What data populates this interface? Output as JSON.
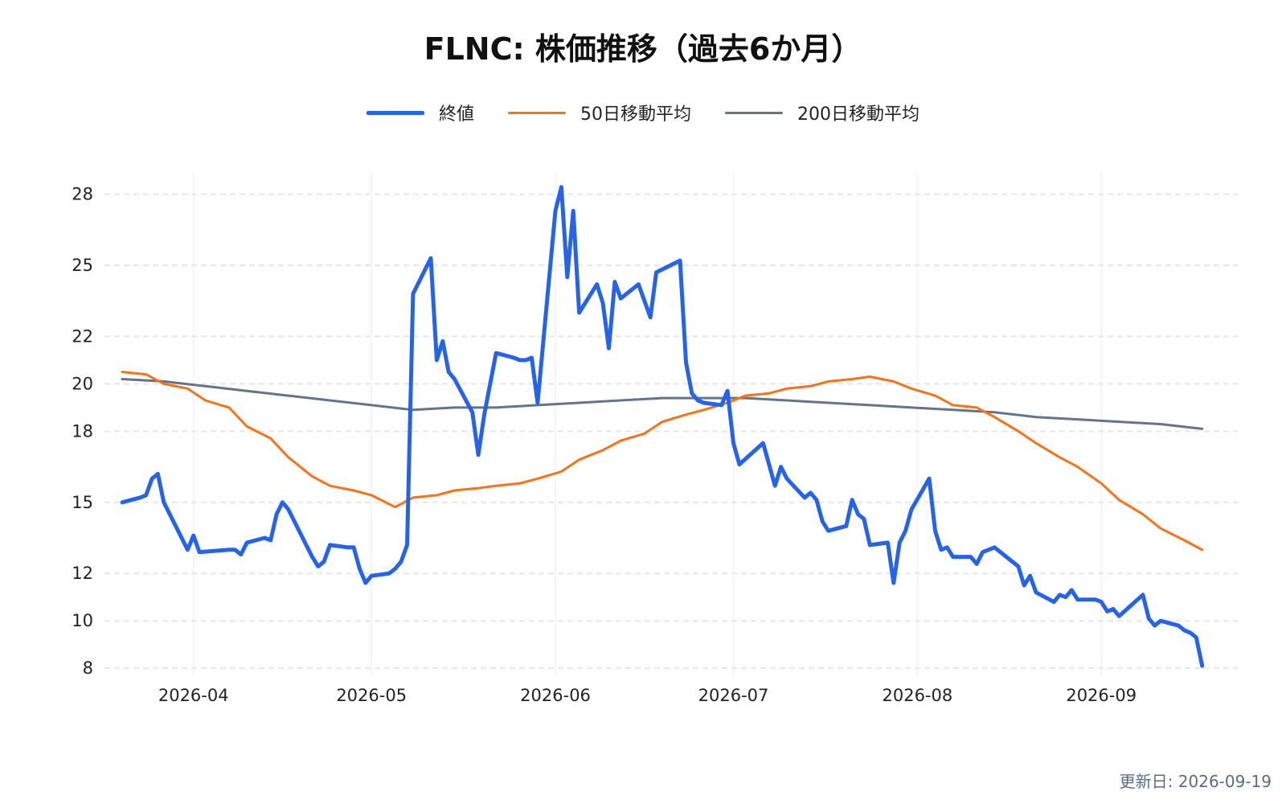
{
  "title": "FLNC: 株価推移（過去6か月）",
  "updated": "更新日: 2026-09-19",
  "colors": {
    "close": "#2563eb",
    "ma50": "#f97316",
    "ma200": "#64748b",
    "grid": "#e5e7eb",
    "text": "#222222"
  },
  "chart_data": {
    "type": "line",
    "title": "FLNC: 株価推移（過去6か月）",
    "xlabel": "",
    "ylabel": "",
    "ylim": [
      7.7,
      28.9
    ],
    "yticks": [
      8,
      10,
      12,
      15,
      18,
      20,
      22,
      25,
      28
    ],
    "xticks": [
      "2026-04",
      "2026-05",
      "2026-06",
      "2026-07",
      "2026-08",
      "2026-09"
    ],
    "xlim": [
      "2026-03-17",
      "2026-09-24"
    ],
    "grid": true,
    "legend_position": "top-center",
    "series": [
      {
        "name": "終値",
        "color": "#2563eb",
        "x": [
          "2026-03-20",
          "2026-03-23",
          "2026-03-24",
          "2026-03-25",
          "2026-03-26",
          "2026-03-27",
          "2026-03-30",
          "2026-03-31",
          "2026-04-01",
          "2026-04-02",
          "2026-04-07",
          "2026-04-08",
          "2026-04-09",
          "2026-04-10",
          "2026-04-13",
          "2026-04-14",
          "2026-04-15",
          "2026-04-16",
          "2026-04-17",
          "2026-04-20",
          "2026-04-21",
          "2026-04-22",
          "2026-04-23",
          "2026-04-24",
          "2026-04-27",
          "2026-04-28",
          "2026-04-29",
          "2026-04-30",
          "2026-05-01",
          "2026-05-04",
          "2026-05-05",
          "2026-05-06",
          "2026-05-07",
          "2026-05-08",
          "2026-05-11",
          "2026-05-12",
          "2026-05-13",
          "2026-05-14",
          "2026-05-15",
          "2026-05-18",
          "2026-05-19",
          "2026-05-20",
          "2026-05-22",
          "2026-05-25",
          "2026-05-26",
          "2026-05-27",
          "2026-05-28",
          "2026-05-29",
          "2026-06-01",
          "2026-06-02",
          "2026-06-03",
          "2026-06-04",
          "2026-06-05",
          "2026-06-08",
          "2026-06-09",
          "2026-06-10",
          "2026-06-11",
          "2026-06-12",
          "2026-06-15",
          "2026-06-16",
          "2026-06-17",
          "2026-06-18",
          "2026-06-22",
          "2026-06-23",
          "2026-06-24",
          "2026-06-25",
          "2026-06-26",
          "2026-06-29",
          "2026-06-30",
          "2026-07-01",
          "2026-07-02",
          "2026-07-06",
          "2026-07-07",
          "2026-07-08",
          "2026-07-09",
          "2026-07-10",
          "2026-07-13",
          "2026-07-14",
          "2026-07-15",
          "2026-07-16",
          "2026-07-17",
          "2026-07-20",
          "2026-07-21",
          "2026-07-22",
          "2026-07-23",
          "2026-07-24",
          "2026-07-27",
          "2026-07-28",
          "2026-07-29",
          "2026-07-30",
          "2026-07-31",
          "2026-08-03",
          "2026-08-04",
          "2026-08-05",
          "2026-08-06",
          "2026-08-07",
          "2026-08-10",
          "2026-08-11",
          "2026-08-12",
          "2026-08-13",
          "2026-08-14",
          "2026-08-17",
          "2026-08-18",
          "2026-08-19",
          "2026-08-20",
          "2026-08-21",
          "2026-08-24",
          "2026-08-25",
          "2026-08-26",
          "2026-08-27",
          "2026-08-28",
          "2026-08-31",
          "2026-09-01",
          "2026-09-02",
          "2026-09-03",
          "2026-09-04",
          "2026-09-08",
          "2026-09-09",
          "2026-09-10",
          "2026-09-11",
          "2026-09-14",
          "2026-09-15",
          "2026-09-16",
          "2026-09-17",
          "2026-09-18"
        ],
        "values": [
          15.0,
          15.2,
          15.3,
          16.0,
          16.2,
          15.0,
          13.5,
          13.0,
          13.6,
          12.9,
          13.0,
          13.0,
          12.8,
          13.3,
          13.5,
          13.4,
          14.5,
          15.0,
          14.7,
          13.2,
          12.7,
          12.3,
          12.5,
          13.2,
          13.1,
          13.1,
          12.2,
          11.6,
          11.9,
          12.0,
          12.2,
          12.5,
          13.2,
          23.8,
          25.3,
          21.0,
          21.8,
          20.5,
          20.2,
          18.8,
          17.0,
          18.7,
          21.3,
          21.1,
          21.0,
          21.0,
          21.1,
          19.2,
          27.3,
          28.3,
          24.5,
          27.3,
          23.0,
          24.2,
          23.4,
          21.5,
          24.3,
          23.6,
          24.2,
          23.5,
          22.8,
          24.7,
          25.2,
          20.9,
          19.6,
          19.3,
          19.2,
          19.1,
          19.7,
          17.5,
          16.6,
          17.5,
          16.6,
          15.7,
          16.5,
          16.0,
          15.2,
          15.4,
          15.1,
          14.2,
          13.8,
          14.0,
          15.1,
          14.5,
          14.3,
          13.2,
          13.3,
          11.6,
          13.3,
          13.8,
          14.7,
          16.0,
          13.8,
          13.0,
          13.1,
          12.7,
          12.7,
          12.4,
          12.9,
          13.0,
          13.1,
          12.5,
          12.3,
          11.5,
          11.9,
          11.2,
          10.8,
          11.1,
          11.0,
          11.3,
          10.9,
          10.9,
          10.8,
          10.4,
          10.5,
          10.2,
          11.1,
          10.1,
          9.8,
          10.0,
          9.8,
          9.6,
          9.5,
          9.3,
          8.1
        ]
      },
      {
        "name": "50日移動平均",
        "color": "#f97316",
        "x": [
          "2026-03-20",
          "2026-03-24",
          "2026-03-27",
          "2026-03-31",
          "2026-04-03",
          "2026-04-07",
          "2026-04-10",
          "2026-04-14",
          "2026-04-17",
          "2026-04-21",
          "2026-04-24",
          "2026-04-28",
          "2026-05-01",
          "2026-05-05",
          "2026-05-08",
          "2026-05-12",
          "2026-05-15",
          "2026-05-19",
          "2026-05-22",
          "2026-05-26",
          "2026-05-29",
          "2026-06-02",
          "2026-06-05",
          "2026-06-09",
          "2026-06-12",
          "2026-06-16",
          "2026-06-19",
          "2026-06-23",
          "2026-06-26",
          "2026-06-30",
          "2026-07-03",
          "2026-07-07",
          "2026-07-10",
          "2026-07-14",
          "2026-07-17",
          "2026-07-21",
          "2026-07-24",
          "2026-07-28",
          "2026-07-31",
          "2026-08-04",
          "2026-08-07",
          "2026-08-11",
          "2026-08-14",
          "2026-08-18",
          "2026-08-21",
          "2026-08-25",
          "2026-08-28",
          "2026-09-01",
          "2026-09-04",
          "2026-09-08",
          "2026-09-11",
          "2026-09-15",
          "2026-09-18"
        ],
        "values": [
          20.5,
          20.4,
          20.0,
          19.8,
          19.3,
          19.0,
          18.2,
          17.7,
          16.9,
          16.1,
          15.7,
          15.5,
          15.3,
          14.8,
          15.2,
          15.3,
          15.5,
          15.6,
          15.7,
          15.8,
          16.0,
          16.3,
          16.8,
          17.2,
          17.6,
          17.9,
          18.4,
          18.7,
          18.9,
          19.2,
          19.5,
          19.6,
          19.8,
          19.9,
          20.1,
          20.2,
          20.3,
          20.1,
          19.8,
          19.5,
          19.1,
          19.0,
          18.6,
          18.0,
          17.5,
          16.9,
          16.5,
          15.8,
          15.1,
          14.5,
          13.9,
          13.4,
          13.0
        ]
      },
      {
        "name": "200日移動平均",
        "color": "#64748b",
        "x": [
          "2026-03-20",
          "2026-03-27",
          "2026-04-03",
          "2026-04-10",
          "2026-04-17",
          "2026-04-24",
          "2026-05-01",
          "2026-05-08",
          "2026-05-15",
          "2026-05-22",
          "2026-05-29",
          "2026-06-05",
          "2026-06-12",
          "2026-06-19",
          "2026-06-26",
          "2026-07-03",
          "2026-07-10",
          "2026-07-17",
          "2026-07-24",
          "2026-07-31",
          "2026-08-07",
          "2026-08-14",
          "2026-08-21",
          "2026-08-28",
          "2026-09-04",
          "2026-09-11",
          "2026-09-18"
        ],
        "values": [
          20.2,
          20.1,
          19.9,
          19.7,
          19.5,
          19.3,
          19.1,
          18.9,
          19.0,
          19.0,
          19.1,
          19.2,
          19.3,
          19.4,
          19.4,
          19.4,
          19.3,
          19.2,
          19.1,
          19.0,
          18.9,
          18.8,
          18.6,
          18.5,
          18.4,
          18.3,
          18.1
        ]
      }
    ]
  }
}
